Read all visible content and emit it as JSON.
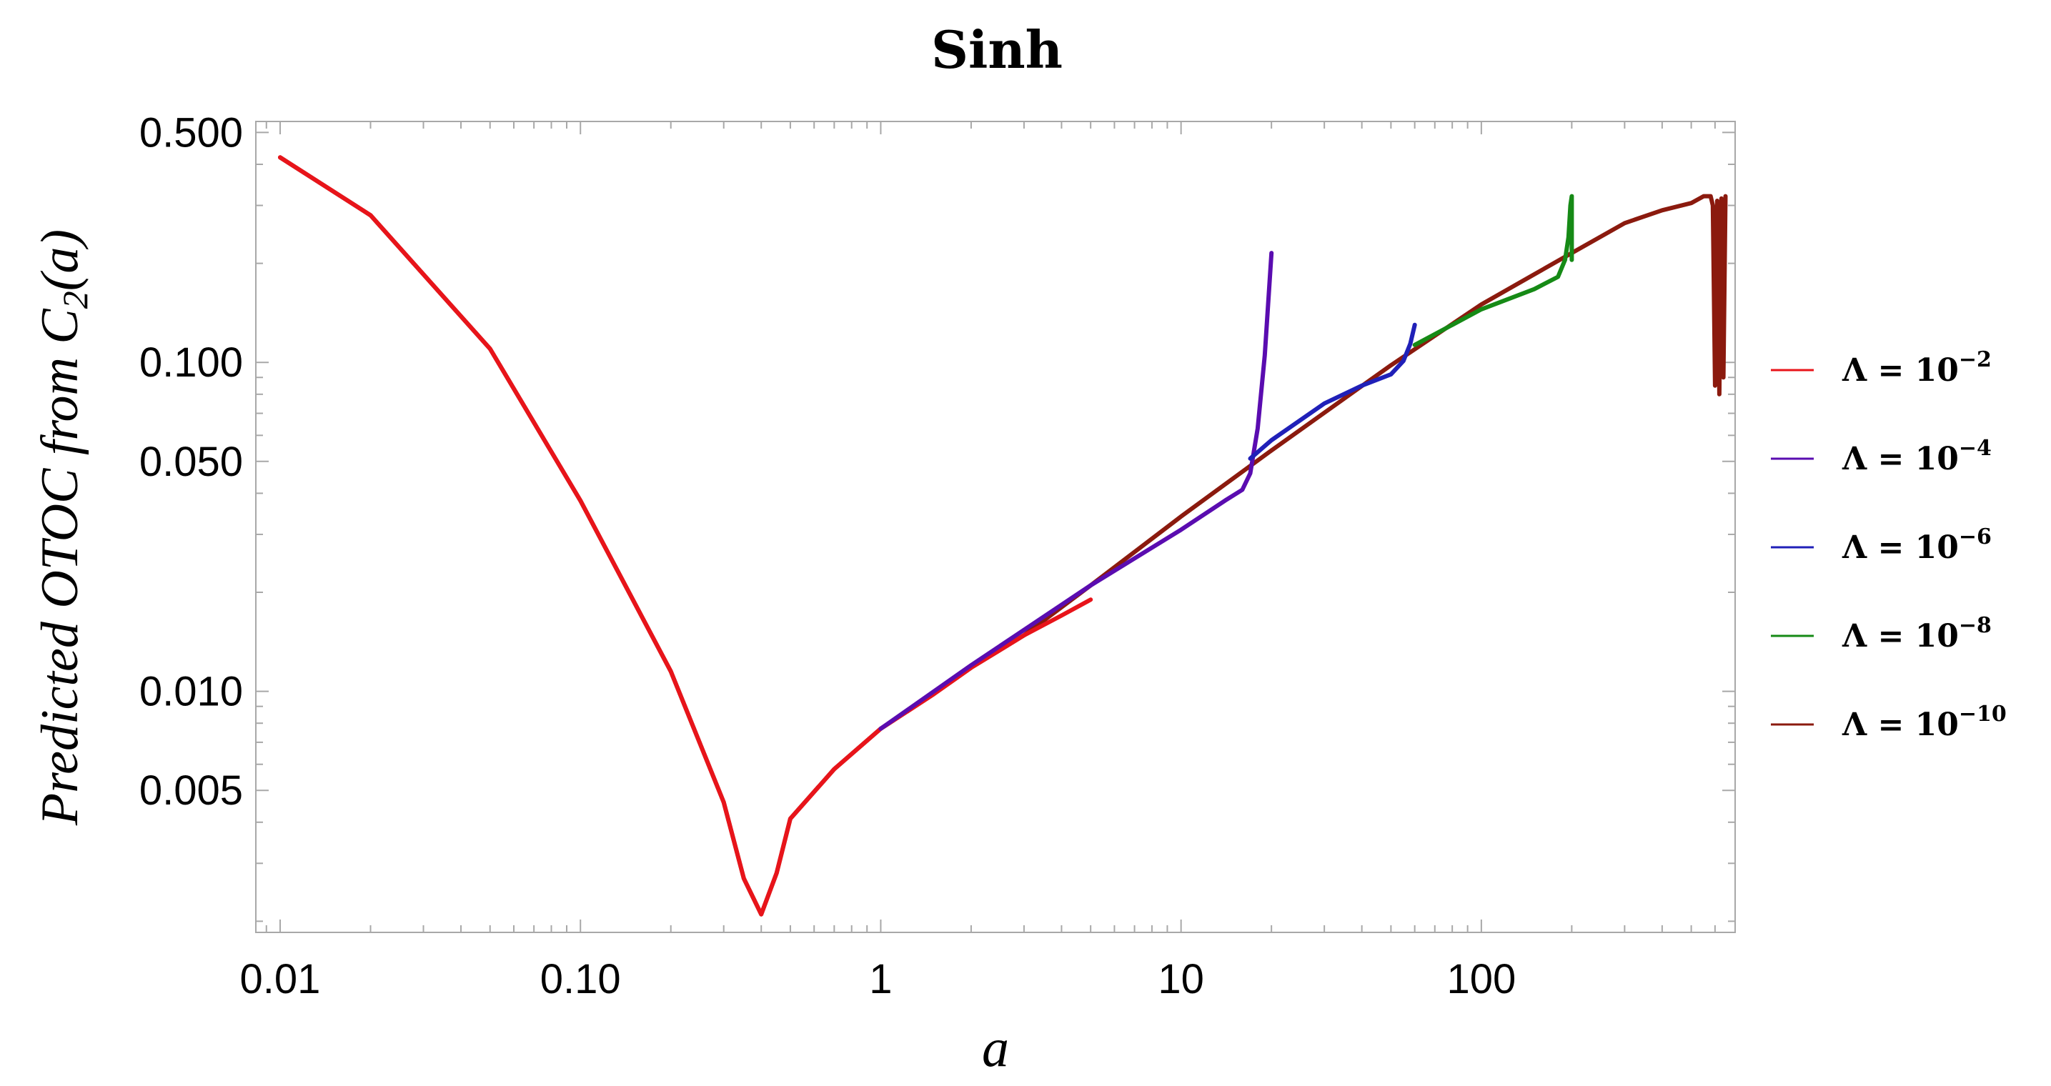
{
  "chart_data": {
    "type": "line",
    "title": "Sinh",
    "xlabel": "a",
    "ylabel": "Predicted OTOC from C2(a)",
    "ylabel_parts": {
      "main": "Predicted OTOC from C",
      "subscript": "2",
      "tail": "(a)"
    },
    "x_scale": "log",
    "y_scale": "log",
    "xlim": [
      0.0083,
      700
    ],
    "ylim": [
      0.00185,
      0.54
    ],
    "x_ticks": [
      {
        "value": 0.01,
        "label": "0.01"
      },
      {
        "value": 0.1,
        "label": "0.10"
      },
      {
        "value": 1,
        "label": "1"
      },
      {
        "value": 10,
        "label": "10"
      },
      {
        "value": 100,
        "label": "100"
      }
    ],
    "y_ticks": [
      {
        "value": 0.5,
        "label": "0.500"
      },
      {
        "value": 0.1,
        "label": "0.100"
      },
      {
        "value": 0.05,
        "label": "0.050"
      },
      {
        "value": 0.01,
        "label": "0.010"
      },
      {
        "value": 0.005,
        "label": "0.005"
      }
    ],
    "grid": false,
    "legend_position": "right",
    "series": [
      {
        "name": "Λ = 10^-2",
        "legend_base": "Λ = 10",
        "legend_exp": "−2",
        "color": "#e8141a",
        "x": [
          0.01,
          0.02,
          0.05,
          0.1,
          0.2,
          0.3,
          0.35,
          0.4,
          0.45,
          0.5,
          0.7,
          1,
          1.5,
          2,
          3,
          4,
          5
        ],
        "y": [
          0.42,
          0.28,
          0.11,
          0.038,
          0.0115,
          0.0046,
          0.0027,
          0.0021,
          0.0028,
          0.0041,
          0.0058,
          0.0077,
          0.0098,
          0.0118,
          0.0148,
          0.017,
          0.019
        ]
      },
      {
        "name": "Λ = 10^-4",
        "legend_base": "Λ = 10",
        "legend_exp": "−4",
        "color": "#5a0cb0",
        "x": [
          1,
          2,
          5,
          10,
          14,
          16,
          17,
          18,
          19,
          20
        ],
        "y": [
          0.0077,
          0.012,
          0.021,
          0.031,
          0.038,
          0.041,
          0.046,
          0.063,
          0.105,
          0.215
        ]
      },
      {
        "name": "Λ = 10^-6",
        "legend_base": "Λ = 10",
        "legend_exp": "−6",
        "color": "#2020b8",
        "x": [
          17,
          20,
          30,
          40,
          50,
          55,
          58,
          60
        ],
        "y": [
          0.051,
          0.058,
          0.075,
          0.085,
          0.092,
          0.101,
          0.114,
          0.13
        ]
      },
      {
        "name": "Λ = 10^-8",
        "legend_base": "Λ = 10",
        "legend_exp": "−8",
        "color": "#168a16",
        "x": [
          60,
          100,
          150,
          180,
          190,
          195,
          198,
          200,
          200
        ],
        "y": [
          0.113,
          0.145,
          0.167,
          0.182,
          0.205,
          0.24,
          0.3,
          0.32,
          0.205
        ]
      },
      {
        "name": "Λ = 10^-10",
        "legend_base": "Λ = 10",
        "legend_exp": "−10",
        "color": "#8b1a0e",
        "x": [
          0.01,
          0.02,
          0.05,
          0.1,
          0.2,
          0.3,
          0.35,
          0.4,
          0.45,
          0.5,
          0.7,
          1,
          1.5,
          2,
          3,
          5,
          10,
          20,
          50,
          100,
          200,
          300,
          400,
          500,
          550,
          580,
          590,
          600,
          610,
          620,
          630,
          640,
          650
        ],
        "y": [
          0.42,
          0.28,
          0.11,
          0.038,
          0.0115,
          0.0046,
          0.0027,
          0.0021,
          0.0028,
          0.0041,
          0.0058,
          0.0077,
          0.0098,
          0.0118,
          0.0148,
          0.021,
          0.034,
          0.054,
          0.098,
          0.15,
          0.215,
          0.265,
          0.29,
          0.305,
          0.32,
          0.32,
          0.3,
          0.085,
          0.31,
          0.08,
          0.315,
          0.09,
          0.32
        ]
      }
    ]
  }
}
